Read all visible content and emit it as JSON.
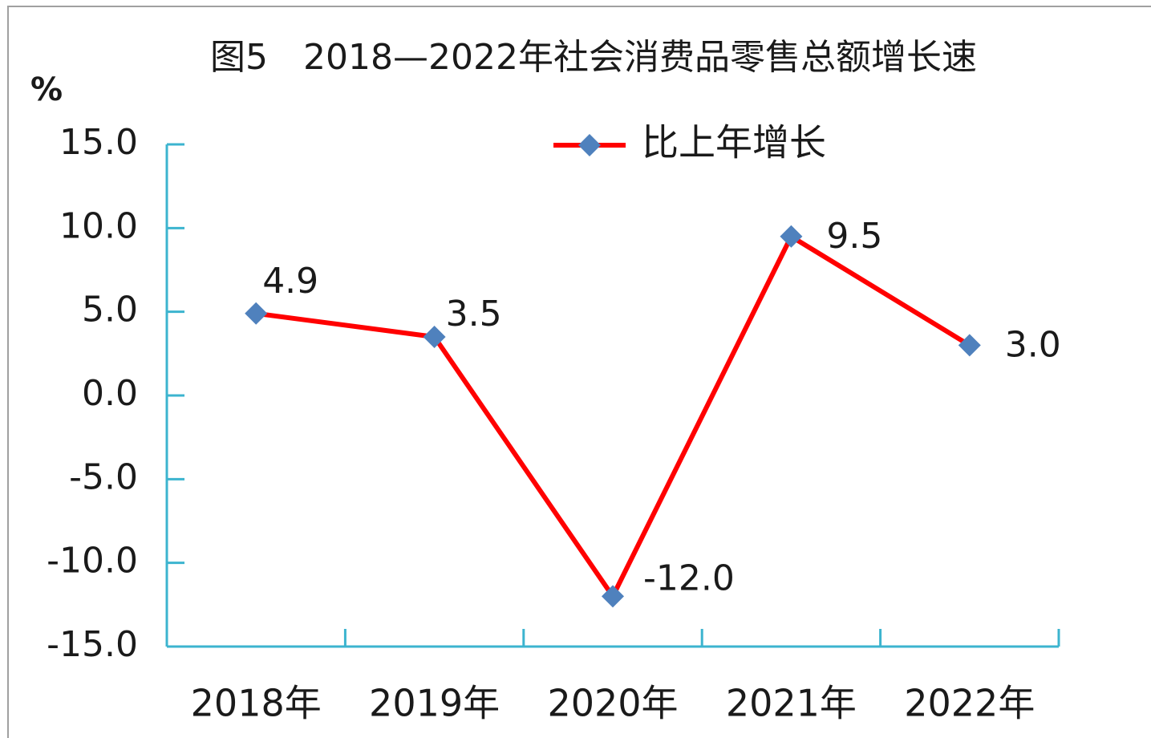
{
  "chart_data": {
    "type": "line",
    "title": "图5　2018—2022年社会消费品零售总额增长速",
    "y_label": "%",
    "categories": [
      "2018年",
      "2019年",
      "2020年",
      "2021年",
      "2022年"
    ],
    "series": [
      {
        "name": "比上年增长",
        "color": "#ff0000",
        "marker_color": "#4f81bd",
        "values": [
          4.9,
          3.5,
          -12,
          9.5,
          3
        ],
        "value_labels": [
          "4.9",
          "3.5",
          "-12.0",
          "9.5",
          "3.0"
        ]
      }
    ],
    "ylim": [
      -15,
      15
    ],
    "yticks": [
      {
        "value": -15,
        "label": "-15.0"
      },
      {
        "value": -10,
        "label": "-10.0"
      },
      {
        "value": -5,
        "label": "-5.0"
      },
      {
        "value": 0,
        "label": "0.0"
      },
      {
        "value": 5,
        "label": "5.0"
      },
      {
        "value": 10,
        "label": "10.0"
      },
      {
        "value": 15,
        "label": "15.0"
      }
    ],
    "grid": false,
    "legend": "top"
  }
}
